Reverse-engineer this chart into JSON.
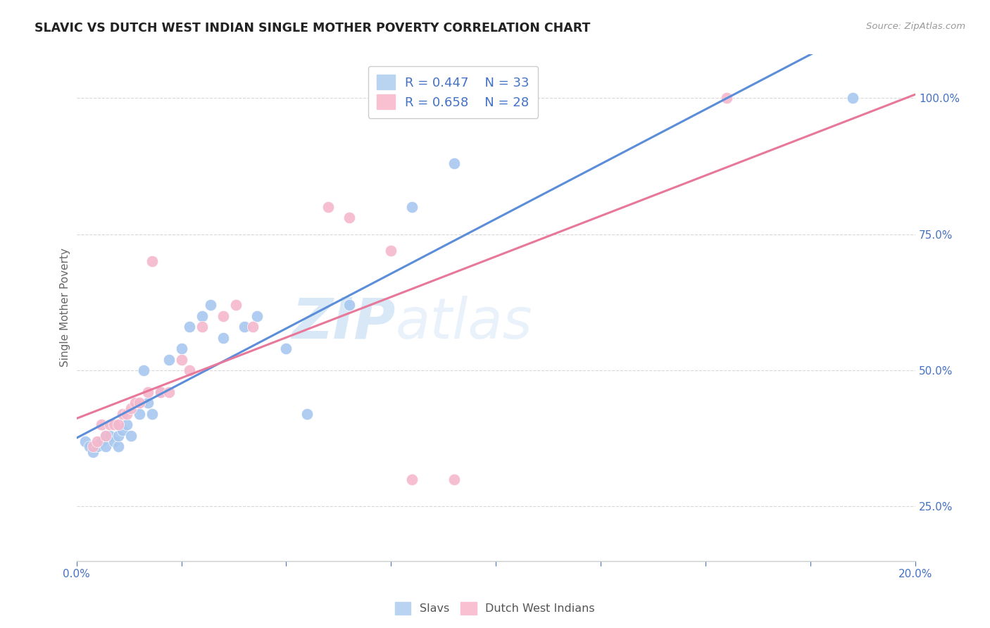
{
  "title": "SLAVIC VS DUTCH WEST INDIAN SINGLE MOTHER POVERTY CORRELATION CHART",
  "source": "Source: ZipAtlas.com",
  "xlabel": "",
  "ylabel": "Single Mother Poverty",
  "xlim": [
    0.0,
    0.2
  ],
  "ylim": [
    0.15,
    1.08
  ],
  "yticks": [
    0.25,
    0.5,
    0.75,
    1.0
  ],
  "ytick_labels": [
    "25.0%",
    "50.0%",
    "75.0%",
    "100.0%"
  ],
  "xticks": [
    0.0,
    0.025,
    0.05,
    0.075,
    0.1,
    0.125,
    0.15,
    0.175,
    0.2
  ],
  "xtick_labels_show": [
    "0.0%",
    "",
    "",
    "",
    "",
    "",
    "",
    "",
    "20.0%"
  ],
  "slav_color": "#a8c8f0",
  "dwi_color": "#f4b8cc",
  "slav_line_color": "#5b8dd9",
  "dwi_line_color": "#e8789a",
  "text_color": "#4472C4",
  "watermark_color": "#c8dff5",
  "watermark": "ZIPatlas",
  "slavs_r": 0.447,
  "slavs_n": 33,
  "dwi_r": 0.658,
  "dwi_n": 28,
  "slavs_x": [
    0.002,
    0.003,
    0.004,
    0.005,
    0.006,
    0.007,
    0.007,
    0.008,
    0.009,
    0.01,
    0.01,
    0.011,
    0.012,
    0.013,
    0.015,
    0.016,
    0.017,
    0.018,
    0.02,
    0.022,
    0.025,
    0.027,
    0.03,
    0.032,
    0.035,
    0.04,
    0.043,
    0.05,
    0.055,
    0.065,
    0.08,
    0.09,
    0.185
  ],
  "slavs_y": [
    0.37,
    0.36,
    0.35,
    0.36,
    0.37,
    0.36,
    0.38,
    0.38,
    0.37,
    0.36,
    0.38,
    0.39,
    0.4,
    0.38,
    0.42,
    0.5,
    0.44,
    0.42,
    0.46,
    0.52,
    0.54,
    0.58,
    0.6,
    0.62,
    0.56,
    0.58,
    0.6,
    0.54,
    0.42,
    0.62,
    0.8,
    0.88,
    1.0
  ],
  "dwi_x": [
    0.004,
    0.005,
    0.006,
    0.007,
    0.008,
    0.009,
    0.01,
    0.011,
    0.012,
    0.013,
    0.014,
    0.015,
    0.017,
    0.018,
    0.02,
    0.022,
    0.025,
    0.027,
    0.03,
    0.035,
    0.038,
    0.042,
    0.06,
    0.065,
    0.075,
    0.08,
    0.09,
    0.155
  ],
  "dwi_y": [
    0.36,
    0.37,
    0.4,
    0.38,
    0.4,
    0.4,
    0.4,
    0.42,
    0.42,
    0.43,
    0.44,
    0.44,
    0.46,
    0.7,
    0.46,
    0.46,
    0.52,
    0.5,
    0.58,
    0.6,
    0.62,
    0.58,
    0.8,
    0.78,
    0.72,
    0.3,
    0.3,
    1.0
  ],
  "figsize": [
    14.06,
    8.92
  ],
  "dpi": 100,
  "grid_color": "#d8d8d8",
  "spine_color": "#cccccc"
}
